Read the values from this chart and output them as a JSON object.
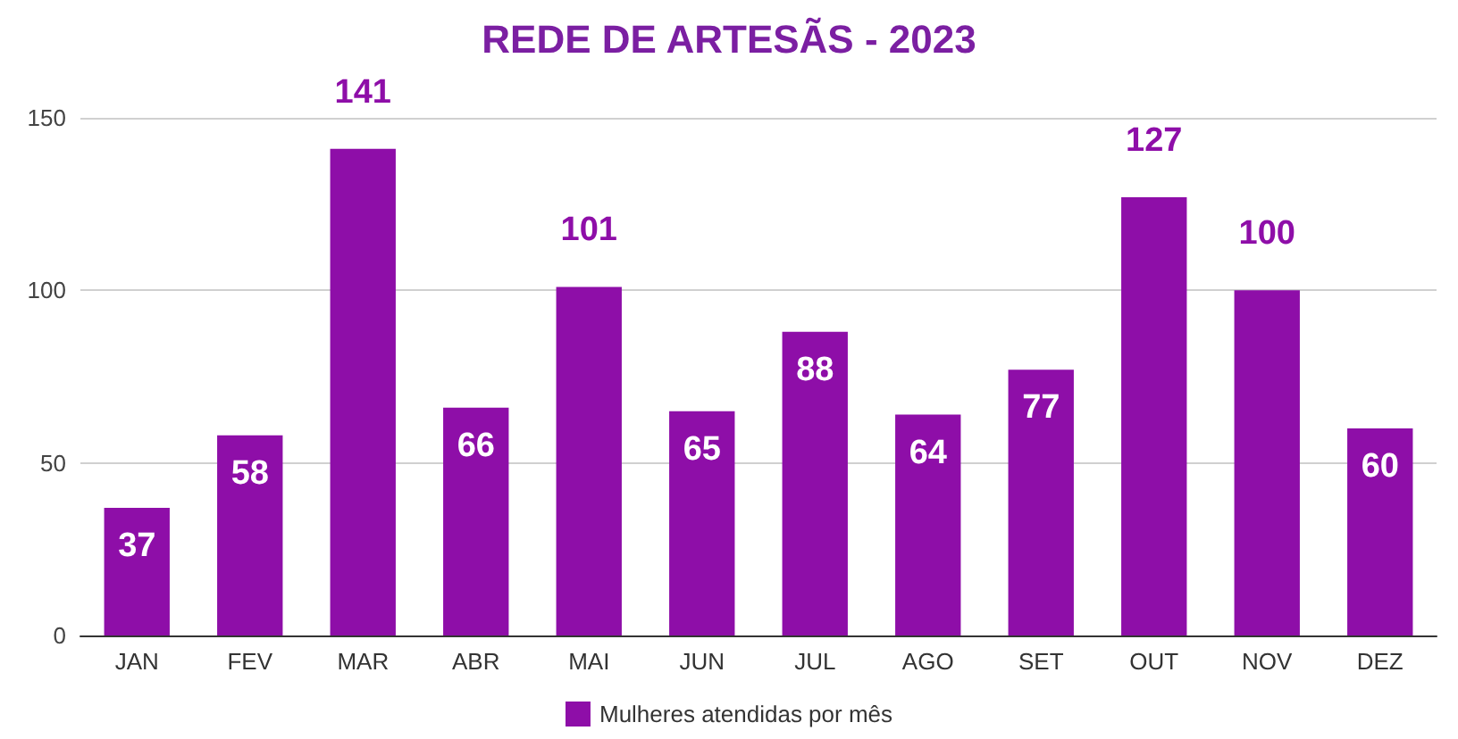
{
  "chart_data": {
    "type": "bar",
    "title": "REDE DE ARTESÃS - 2023",
    "categories": [
      "JAN",
      "FEV",
      "MAR",
      "ABR",
      "MAI",
      "JUN",
      "JUL",
      "AGO",
      "SET",
      "OUT",
      "NOV",
      "DEZ"
    ],
    "series": [
      {
        "name": "Mulheres atendidas por mês",
        "color": "#8e0ea8",
        "values": [
          37,
          58,
          141,
          66,
          101,
          65,
          88,
          64,
          77,
          127,
          100,
          60
        ]
      }
    ],
    "ylim": [
      0,
      150
    ],
    "yticks": [
      0,
      50,
      100,
      150
    ],
    "grid": "y",
    "legend": "bottom",
    "data_labels": true
  }
}
